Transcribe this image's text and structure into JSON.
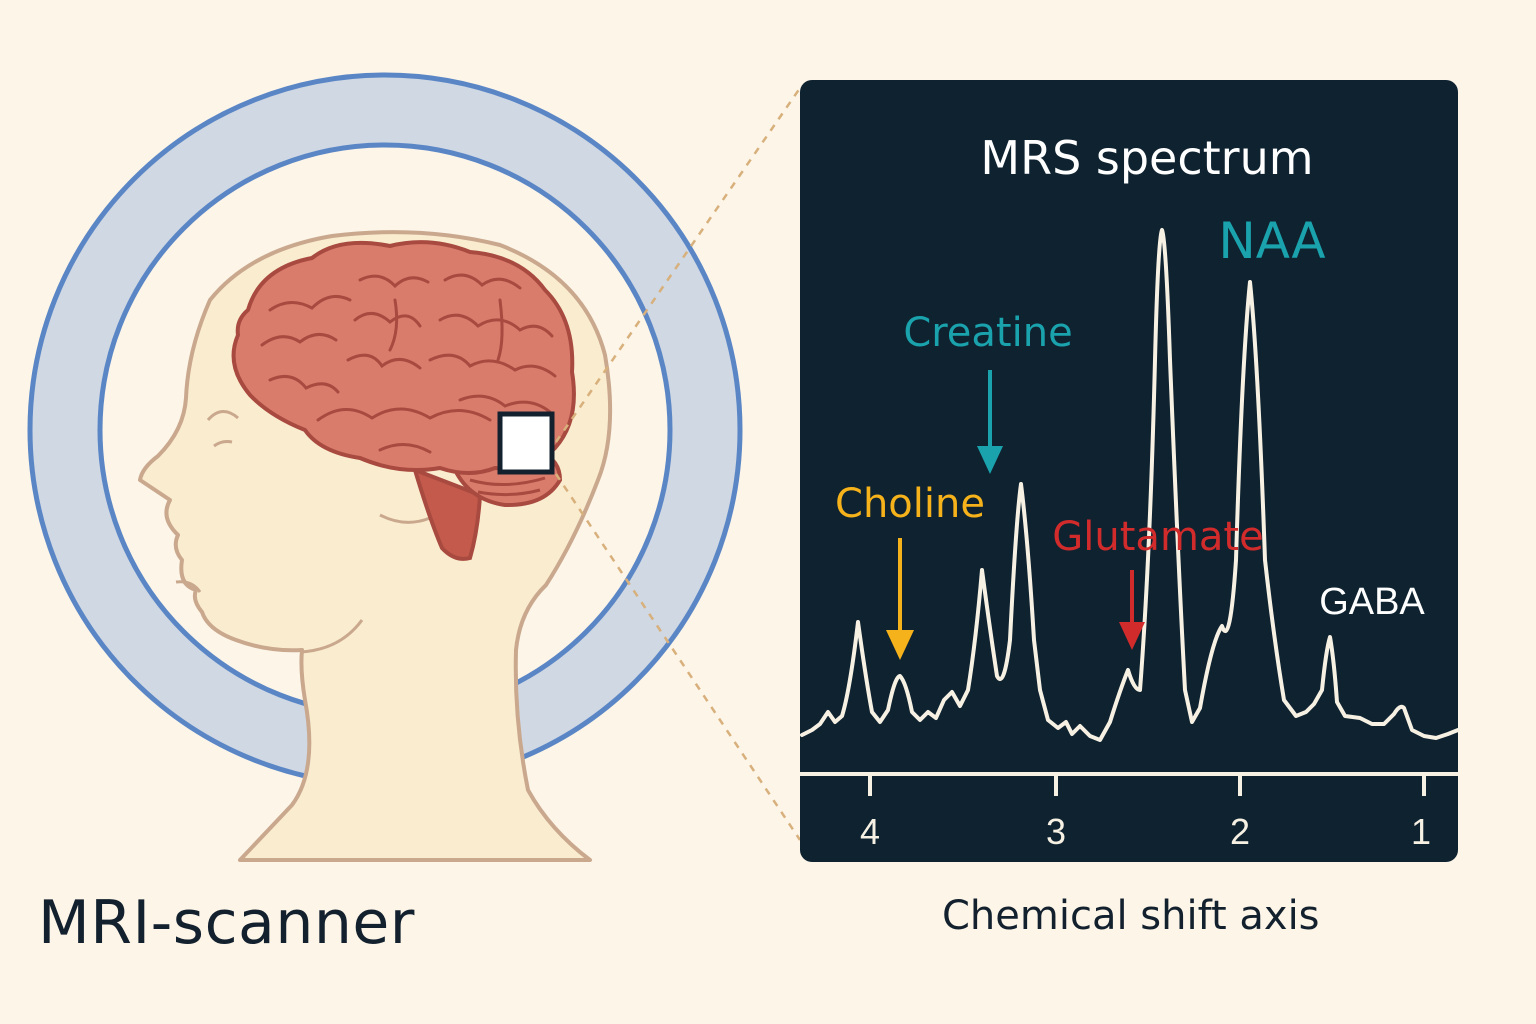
{
  "left_panel": {
    "scanner_label": "MRI-scanner"
  },
  "spectrum_panel": {
    "title": "MRS spectrum",
    "axis_caption": "Chemical shift axis",
    "ticks": [
      "4",
      "3",
      "2",
      "1"
    ],
    "peak_labels": {
      "naa": "NAA",
      "creatine": "Creatine",
      "choline": "Choline",
      "glutamate": "Glutamate",
      "gaba": "GABA"
    }
  },
  "colors": {
    "background": "#fcf5e8",
    "panel": "#0e2230",
    "ring": "#cfd8e3",
    "ring_border": "#5b86c6",
    "skin": "#faeccf",
    "skin_outline": "#c9a88e",
    "brain": "#d97c6c",
    "brain_lines": "#a84a3f",
    "naa": "#1aa3ad",
    "creatine": "#1aa3ad",
    "choline": "#f5b21a",
    "glutamate": "#d22b2b",
    "trace": "#f7f1e4"
  },
  "icons": [
    "head-illustration",
    "brain-illustration",
    "voxel-marker",
    "choline-arrow-icon",
    "creatine-arrow-icon",
    "glutamate-arrow-icon"
  ]
}
